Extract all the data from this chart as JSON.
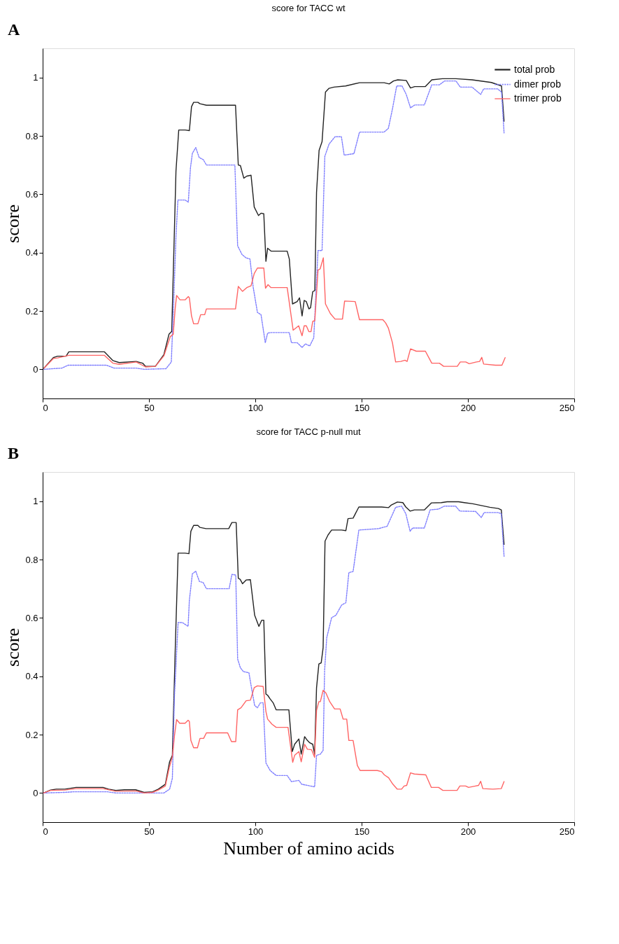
{
  "chart_data": [
    {
      "type": "line",
      "title": "score for TACC wt",
      "ylabel": "score",
      "annotations": [
        "A"
      ],
      "xlim": [
        0,
        250
      ],
      "ylim": [
        -0.1,
        1.1
      ],
      "xticks": [
        0,
        50,
        100,
        150,
        200,
        250
      ],
      "yticks": [
        0,
        0.2,
        0.4,
        0.6,
        0.8,
        1
      ],
      "legend": "top right",
      "series": [
        {
          "name": "total prob",
          "color": "#222222",
          "line_style": "solid",
          "x": [
            0.6,
            5,
            7,
            11,
            12.3,
            29,
            33,
            36,
            44,
            47,
            48.4,
            53,
            57,
            59.4,
            60.7,
            62.7,
            64,
            67,
            69,
            70,
            71,
            73,
            74,
            77,
            90.7,
            92,
            93,
            94.6,
            96,
            98,
            99.5,
            101.5,
            102.7,
            104,
            105,
            105.8,
            107.4,
            115,
            116,
            117.5,
            119.7,
            120.8,
            122,
            123,
            124,
            125.2,
            126,
            127,
            128,
            128.8,
            130,
            131.4,
            133,
            134.7,
            137,
            142.5,
            149,
            160.6,
            163,
            165,
            167,
            171,
            173,
            175,
            180,
            183,
            188,
            194.4,
            202,
            211,
            215.8,
            217
          ],
          "values": [
            0.004,
            0.04,
            0.045,
            0.045,
            0.06,
            0.06,
            0.03,
            0.023,
            0.027,
            0.021,
            0.01,
            0.01,
            0.05,
            0.12,
            0.13,
            0.68,
            0.82,
            0.82,
            0.818,
            0.9,
            0.915,
            0.915,
            0.91,
            0.905,
            0.905,
            0.7,
            0.698,
            0.655,
            0.662,
            0.665,
            0.556,
            0.527,
            0.535,
            0.533,
            0.37,
            0.415,
            0.405,
            0.405,
            0.378,
            0.224,
            0.232,
            0.245,
            0.183,
            0.236,
            0.232,
            0.207,
            0.211,
            0.266,
            0.27,
            0.606,
            0.75,
            0.78,
            0.95,
            0.963,
            0.967,
            0.971,
            0.982,
            0.982,
            0.978,
            0.988,
            0.992,
            0.99,
            0.964,
            0.969,
            0.969,
            0.992,
            0.996,
            0.996,
            0.992,
            0.983,
            0.971,
            0.85
          ]
        },
        {
          "name": "dimer prob",
          "color": "#7f7fff",
          "line_style": "dotted",
          "x": [
            0.6,
            9,
            12,
            30,
            33.6,
            44,
            47.8,
            58,
            60.5,
            61.8,
            62.7,
            63.6,
            67,
            68.5,
            69.5,
            70.4,
            72,
            73.6,
            75.6,
            77,
            90.4,
            91.7,
            93.7,
            95.6,
            97.5,
            99,
            101,
            102.7,
            104.7,
            105.8,
            107.4,
            116,
            117,
            119.7,
            122,
            123.6,
            125.6,
            127.5,
            129.5,
            131.4,
            132.7,
            134.7,
            137.5,
            140.5,
            141.8,
            146.4,
            149,
            160.6,
            162.6,
            164.5,
            166.5,
            169,
            171,
            173,
            175,
            179.5,
            183,
            186.6,
            189,
            194.4,
            196.4,
            202,
            206,
            207.4,
            214,
            215.8,
            217
          ],
          "values": [
            0,
            0.004,
            0.014,
            0.014,
            0.004,
            0.004,
            0,
            0.002,
            0.025,
            0.265,
            0.456,
            0.58,
            0.58,
            0.573,
            0.69,
            0.74,
            0.76,
            0.726,
            0.718,
            0.7,
            0.7,
            0.423,
            0.394,
            0.382,
            0.378,
            0.282,
            0.195,
            0.187,
            0.091,
            0.124,
            0.126,
            0.126,
            0.091,
            0.091,
            0.075,
            0.087,
            0.08,
            0.108,
            0.407,
            0.407,
            0.73,
            0.772,
            0.797,
            0.797,
            0.734,
            0.739,
            0.813,
            0.813,
            0.826,
            0.892,
            0.971,
            0.971,
            0.942,
            0.896,
            0.906,
            0.906,
            0.975,
            0.975,
            0.988,
            0.988,
            0.967,
            0.967,
            0.942,
            0.961,
            0.961,
            0.95,
            0.81
          ]
        },
        {
          "name": "trimer prob",
          "color": "#ff6464",
          "line_style": "solid",
          "x": [
            0.6,
            5,
            7,
            12.3,
            29,
            33,
            36,
            44,
            48.4,
            53,
            57,
            60,
            61.4,
            62.3,
            63,
            64.6,
            67,
            68.5,
            69,
            70,
            71,
            73,
            74.3,
            76.2,
            77,
            90.7,
            92,
            94,
            96,
            98,
            99.5,
            101,
            104,
            104.8,
            106,
            107.4,
            115,
            117.8,
            120.4,
            122,
            123,
            124,
            125.2,
            126.2,
            127,
            128,
            129.5,
            130.5,
            132,
            133,
            135.3,
            137.5,
            141,
            142,
            147,
            149,
            160,
            161.3,
            162.6,
            164.5,
            166,
            168.4,
            170.4,
            171.4,
            173,
            175.7,
            180,
            183,
            186.6,
            188.6,
            195,
            196.4,
            199,
            200.6,
            204,
            205.5,
            206.5,
            207.4,
            213,
            216,
            217.5
          ],
          "values": [
            0.004,
            0.037,
            0.039,
            0.048,
            0.048,
            0.021,
            0.017,
            0.025,
            0.008,
            0.01,
            0.046,
            0.112,
            0.12,
            0.207,
            0.253,
            0.238,
            0.238,
            0.249,
            0.245,
            0.183,
            0.156,
            0.156,
            0.187,
            0.187,
            0.207,
            0.207,
            0.284,
            0.267,
            0.28,
            0.286,
            0.328,
            0.347,
            0.347,
            0.278,
            0.29,
            0.28,
            0.28,
            0.134,
            0.149,
            0.115,
            0.149,
            0.149,
            0.129,
            0.129,
            0.164,
            0.167,
            0.34,
            0.344,
            0.382,
            0.224,
            0.191,
            0.172,
            0.172,
            0.234,
            0.232,
            0.17,
            0.17,
            0.159,
            0.141,
            0.091,
            0.025,
            0.027,
            0.031,
            0.027,
            0.07,
            0.062,
            0.062,
            0.021,
            0.021,
            0.01,
            0.01,
            0.025,
            0.025,
            0.019,
            0.025,
            0.027,
            0.041,
            0.018,
            0.014,
            0.014,
            0.04
          ]
        }
      ]
    },
    {
      "type": "line",
      "title": "score for TACC p-null mut",
      "ylabel": "score",
      "xlabel": "Number of amino acids",
      "annotations": [
        "B"
      ],
      "xlim": [
        0,
        250
      ],
      "ylim": [
        -0.1,
        1.1
      ],
      "xticks": [
        0,
        50,
        100,
        150,
        200,
        250
      ],
      "yticks": [
        0,
        0.2,
        0.4,
        0.6,
        0.8,
        1
      ],
      "legend": "top right",
      "series": [
        {
          "name": "total prob",
          "color": "#222222",
          "line_style": "solid",
          "x": [
            0.4,
            3.7,
            6.4,
            10.4,
            15.7,
            28.4,
            31,
            34.4,
            38.4,
            43.7,
            47.7,
            51.7,
            54.4,
            57.7,
            59.7,
            61,
            62.4,
            63.7,
            67,
            68.8,
            69.7,
            71,
            73,
            74,
            76.8,
            87.5,
            89,
            91,
            92,
            92.9,
            94,
            95.7,
            97.7,
            99.7,
            101.7,
            103,
            104,
            105,
            105.8,
            107,
            108.4,
            109.8,
            115.8,
            117.4,
            118.5,
            120.5,
            121.6,
            123.2,
            124.5,
            125.6,
            127,
            127.9,
            128.8,
            129.9,
            131,
            131.9,
            132.8,
            134.2,
            135.9,
            140.6,
            142.6,
            143.6,
            146,
            148.7,
            159.4,
            162.7,
            164,
            166.8,
            169.4,
            170.8,
            172.8,
            174.8,
            179.5,
            182.8,
            187.5,
            190.2,
            195.6,
            198.3,
            202.3,
            210.3,
            214.3,
            215.7,
            217
          ],
          "values": [
            0,
            0.01,
            0.013,
            0.013,
            0.019,
            0.019,
            0.013,
            0.009,
            0.011,
            0.011,
            0.002,
            0.004,
            0.013,
            0.03,
            0.107,
            0.129,
            0.506,
            0.822,
            0.822,
            0.82,
            0.897,
            0.917,
            0.917,
            0.91,
            0.906,
            0.906,
            0.927,
            0.927,
            0.736,
            0.732,
            0.717,
            0.73,
            0.731,
            0.609,
            0.571,
            0.592,
            0.592,
            0.339,
            0.335,
            0.322,
            0.309,
            0.285,
            0.285,
            0.142,
            0.167,
            0.185,
            0.133,
            0.193,
            0.18,
            0.172,
            0.167,
            0.133,
            0.36,
            0.442,
            0.446,
            0.498,
            0.863,
            0.884,
            0.901,
            0.901,
            0.899,
            0.94,
            0.942,
            0.98,
            0.98,
            0.978,
            0.987,
            0.997,
            0.995,
            0.98,
            0.966,
            0.97,
            0.97,
            0.994,
            0.995,
            0.998,
            0.998,
            0.995,
            0.991,
            0.979,
            0.975,
            0.97,
            0.852
          ]
        },
        {
          "name": "dimer prob",
          "color": "#7f7fff",
          "line_style": "dotted",
          "x": [
            0.4,
            10.4,
            14.4,
            30.4,
            34.4,
            57,
            59.7,
            61,
            62,
            63.7,
            65.7,
            68.4,
            69,
            70.4,
            72,
            73.7,
            75.5,
            77,
            87.7,
            89,
            90.8,
            91.7,
            93,
            94.4,
            97,
            98.1,
            99.7,
            101,
            102.4,
            103.7,
            105,
            107,
            109.8,
            115,
            117,
            120.5,
            121.8,
            125.9,
            127.9,
            128.8,
            130.6,
            131.9,
            132.6,
            133.6,
            135.9,
            137.9,
            140.6,
            142.6,
            144,
            146,
            148.7,
            158,
            162,
            166,
            168.8,
            170.8,
            172.8,
            174,
            179.5,
            182.2,
            186.2,
            188.9,
            194.2,
            196.2,
            203.6,
            206.3,
            207.6,
            214.3,
            215.7,
            217
          ],
          "values": [
            0,
            0.002,
            0.004,
            0.004,
            0,
            0,
            0.013,
            0.05,
            0.335,
            0.584,
            0.584,
            0.571,
            0.661,
            0.751,
            0.76,
            0.725,
            0.721,
            0.7,
            0.7,
            0.749,
            0.747,
            0.459,
            0.429,
            0.416,
            0.412,
            0.365,
            0.3,
            0.292,
            0.309,
            0.309,
            0.103,
            0.077,
            0.06,
            0.06,
            0.039,
            0.043,
            0.03,
            0.024,
            0.021,
            0.129,
            0.133,
            0.146,
            0.42,
            0.532,
            0.601,
            0.609,
            0.644,
            0.652,
            0.755,
            0.759,
            0.901,
            0.906,
            0.914,
            0.979,
            0.983,
            0.957,
            0.897,
            0.908,
            0.908,
            0.97,
            0.973,
            0.983,
            0.983,
            0.966,
            0.965,
            0.944,
            0.961,
            0.961,
            0.957,
            0.811
          ]
        },
        {
          "name": "trimer prob",
          "color": "#ff6464",
          "line_style": "solid",
          "x": [
            0.4,
            3.7,
            10.4,
            15.7,
            28.4,
            34.4,
            43.7,
            47.7,
            51.7,
            54.4,
            57.7,
            59.5,
            61,
            62,
            63,
            64.4,
            67,
            68.4,
            69,
            69.7,
            71,
            72.8,
            74,
            75.7,
            77,
            87,
            88.8,
            90.8,
            91.7,
            93.3,
            95.7,
            97.7,
            99.5,
            101,
            103.7,
            105,
            105.8,
            107.8,
            109.8,
            115.4,
            117.6,
            118.5,
            120.5,
            121.6,
            123.2,
            124.5,
            126.5,
            127.9,
            128.8,
            129.9,
            130.6,
            131.9,
            133.2,
            135,
            137.3,
            139.9,
            141.3,
            143,
            144,
            146,
            148,
            149.3,
            157.4,
            159.4,
            160.7,
            162.7,
            164.7,
            166.8,
            168.8,
            170,
            171.2,
            173,
            174.8,
            180.2,
            182.8,
            186.2,
            188.2,
            194.9,
            196.2,
            198.9,
            200.3,
            203.6,
            205,
            206,
            207,
            211.7,
            215.7,
            217
          ],
          "values": [
            0,
            0.009,
            0.01,
            0.015,
            0.015,
            0.006,
            0.007,
            0,
            0.002,
            0.01,
            0.024,
            0.086,
            0.124,
            0.197,
            0.252,
            0.239,
            0.239,
            0.249,
            0.245,
            0.18,
            0.155,
            0.155,
            0.187,
            0.187,
            0.206,
            0.206,
            0.176,
            0.176,
            0.285,
            0.292,
            0.316,
            0.318,
            0.361,
            0.367,
            0.365,
            0.279,
            0.253,
            0.236,
            0.225,
            0.225,
            0.105,
            0.129,
            0.142,
            0.107,
            0.167,
            0.15,
            0.148,
            0.122,
            0.283,
            0.313,
            0.313,
            0.352,
            0.343,
            0.313,
            0.288,
            0.288,
            0.253,
            0.253,
            0.18,
            0.18,
            0.094,
            0.077,
            0.077,
            0.073,
            0.062,
            0.052,
            0.03,
            0.013,
            0.013,
            0.024,
            0.026,
            0.069,
            0.065,
            0.062,
            0.019,
            0.019,
            0.009,
            0.009,
            0.024,
            0.024,
            0.019,
            0.024,
            0.026,
            0.04,
            0.015,
            0.013,
            0.015,
            0.039
          ]
        }
      ]
    }
  ]
}
